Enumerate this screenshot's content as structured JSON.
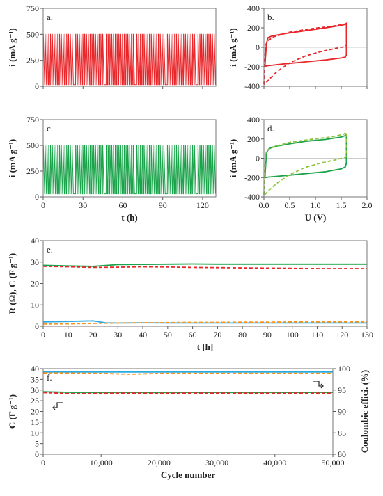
{
  "chart_data": [
    {
      "panel_label": "a.",
      "type": "line",
      "ylabel": "i (mA g⁻¹)",
      "xlabel": "",
      "xlim": [
        0,
        130
      ],
      "ylim": [
        0,
        750
      ],
      "yticks": [
        "0",
        "250",
        "500",
        "750"
      ],
      "xticks": [],
      "series": [
        {
          "color": "#e8262a",
          "style": "pulse",
          "low": 15,
          "high": 500,
          "pulse_count": 96,
          "gaps_at": [
            23,
            46,
            69,
            92,
            115
          ]
        }
      ]
    },
    {
      "panel_label": "b.",
      "type": "line",
      "ylabel": "i (mA g⁻¹)",
      "xlabel": "",
      "xlim": [
        0,
        2
      ],
      "ylim": [
        -400,
        400
      ],
      "yticks": [
        "-400",
        "-200",
        "0",
        "200",
        "400"
      ],
      "xticks": [],
      "series": [
        {
          "color": "#e8262a",
          "dash": false,
          "x": [
            0.02,
            0.05,
            0.08,
            0.15,
            0.4,
            0.8,
            1.2,
            1.5,
            1.58,
            1.6,
            1.6,
            1.58,
            1.5,
            1.2,
            0.8,
            0.4,
            0.15,
            0.06,
            0.03,
            0.02
          ],
          "y": [
            -190,
            40,
            100,
            115,
            140,
            170,
            200,
            225,
            235,
            245,
            -80,
            -100,
            -110,
            -130,
            -150,
            -170,
            -185,
            -190,
            -195,
            -190
          ]
        },
        {
          "color": "#e8262a",
          "dash": true,
          "x": [
            0.0,
            0.03,
            0.08,
            0.2,
            0.5,
            0.9,
            1.3,
            1.55,
            1.6,
            1.6,
            1.55,
            1.4,
            1.1,
            0.8,
            0.5,
            0.25,
            0.1,
            0.03,
            0.0
          ],
          "y": [
            -380,
            20,
            70,
            110,
            155,
            190,
            215,
            235,
            245,
            20,
            5,
            -10,
            -45,
            -90,
            -160,
            -250,
            -330,
            -370,
            -380
          ]
        }
      ]
    },
    {
      "panel_label": "c.",
      "type": "line",
      "ylabel": "i (mA g⁻¹)",
      "xlabel": "t (h)",
      "xlim": [
        0,
        130
      ],
      "ylim": [
        0,
        750
      ],
      "yticks": [
        "0",
        "250",
        "500",
        "750"
      ],
      "xticks": [
        "0",
        "30",
        "60",
        "90",
        "120"
      ],
      "series": [
        {
          "color": "#1aa34a",
          "style": "pulse",
          "low": 30,
          "high": 500,
          "pulse_count": 96,
          "gaps_at": [
            23,
            46,
            69,
            92,
            115
          ]
        }
      ]
    },
    {
      "panel_label": "d.",
      "type": "line",
      "ylabel": "i (mA g⁻¹)",
      "xlabel": "U (V)",
      "xlim": [
        0,
        2
      ],
      "ylim": [
        -400,
        400
      ],
      "yticks": [
        "-400",
        "-200",
        "0",
        "200",
        "400"
      ],
      "xticks": [
        "0.0",
        "0.5",
        "1.0",
        "1.5",
        "2.0"
      ],
      "series": [
        {
          "color": "#1aa34a",
          "dash": false,
          "x": [
            0.02,
            0.05,
            0.1,
            0.2,
            0.5,
            0.8,
            1.2,
            1.5,
            1.58,
            1.6,
            1.6,
            1.58,
            1.5,
            1.2,
            0.8,
            0.5,
            0.2,
            0.08,
            0.03,
            0.02
          ],
          "y": [
            -200,
            60,
            100,
            120,
            150,
            175,
            195,
            220,
            235,
            255,
            -50,
            -90,
            -110,
            -140,
            -160,
            -175,
            -190,
            -195,
            -200,
            -200
          ]
        },
        {
          "color": "#8cc63f",
          "dash": true,
          "x": [
            0.0,
            0.03,
            0.08,
            0.2,
            0.5,
            0.9,
            1.3,
            1.55,
            1.6,
            1.6,
            1.55,
            1.4,
            1.1,
            0.8,
            0.5,
            0.25,
            0.1,
            0.03,
            0.0
          ],
          "y": [
            -380,
            40,
            90,
            120,
            165,
            195,
            220,
            250,
            270,
            20,
            5,
            -15,
            -50,
            -95,
            -170,
            -260,
            -330,
            -370,
            -380
          ]
        }
      ]
    },
    {
      "panel_label": "e.",
      "type": "line",
      "ylabel": "R (Ω), C (F g⁻¹)",
      "xlabel": "t [h]",
      "xlim": [
        0,
        130
      ],
      "ylim": [
        0,
        40
      ],
      "yticks": [
        "0",
        "10",
        "20",
        "30",
        "40"
      ],
      "xticks": [
        "0",
        "10",
        "20",
        "30",
        "40",
        "50",
        "60",
        "70",
        "80",
        "90",
        "100",
        "110",
        "120",
        "130"
      ],
      "series": [
        {
          "color": "#1aa34a",
          "dash": false,
          "x": [
            0,
            10,
            20,
            30,
            40,
            50,
            60,
            70,
            80,
            90,
            100,
            110,
            120,
            130
          ],
          "y": [
            28.5,
            28.2,
            28.0,
            28.8,
            28.9,
            29.0,
            29.1,
            29.0,
            29.0,
            29.0,
            29.0,
            29.0,
            29.0,
            29.0
          ]
        },
        {
          "color": "#e8262a",
          "dash": true,
          "x": [
            0,
            10,
            20,
            30,
            40,
            50,
            60,
            70,
            80,
            90,
            100,
            110,
            120,
            130
          ],
          "y": [
            28.0,
            27.8,
            27.5,
            27.6,
            27.8,
            27.7,
            27.5,
            27.4,
            27.3,
            27.2,
            27.1,
            27.0,
            27.0,
            27.0
          ]
        },
        {
          "color": "#29abe2",
          "dash": false,
          "x": [
            0,
            10,
            20,
            25,
            30,
            40,
            50,
            60,
            70,
            80,
            90,
            100,
            110,
            120,
            130
          ],
          "y": [
            2.0,
            2.2,
            2.5,
            1.6,
            1.5,
            1.6,
            1.5,
            1.5,
            1.5,
            1.5,
            1.5,
            1.5,
            1.5,
            1.5,
            1.5
          ]
        },
        {
          "color": "#f7931e",
          "dash": true,
          "x": [
            0,
            10,
            20,
            30,
            40,
            50,
            60,
            70,
            80,
            90,
            100,
            110,
            120,
            130
          ],
          "y": [
            1.0,
            1.1,
            1.3,
            1.5,
            1.6,
            1.7,
            1.8,
            1.8,
            1.9,
            1.9,
            2.0,
            2.0,
            2.0,
            2.0
          ]
        }
      ]
    },
    {
      "panel_label": "f.",
      "type": "line",
      "ylabel": "C (F g⁻¹)",
      "y2label": "Coulombic effici. (%)",
      "xlabel": "Cycle number",
      "xlim": [
        0,
        50000
      ],
      "ylim": [
        0,
        40
      ],
      "y2lim": [
        80,
        100
      ],
      "yticks": [
        "0",
        "5",
        "10",
        "15",
        "20",
        "25",
        "30",
        "35",
        "40"
      ],
      "y2ticks": [
        "80",
        "85",
        "90",
        "95",
        "100"
      ],
      "xticks": [
        "0",
        "10,000",
        "20,000",
        "30,000",
        "40,000",
        "50,000"
      ],
      "series": [
        {
          "axis": "left",
          "color": "#1aa34a",
          "dash": false,
          "x": [
            0,
            5000,
            10000,
            15000,
            20000,
            25000,
            30000,
            35000,
            40000,
            45000,
            50000
          ],
          "y": [
            29.2,
            28.9,
            28.8,
            28.9,
            28.8,
            28.9,
            28.9,
            28.8,
            28.9,
            28.9,
            28.9
          ]
        },
        {
          "axis": "left",
          "color": "#e8262a",
          "dash": true,
          "x": [
            0,
            5000,
            10000,
            15000,
            20000,
            25000,
            30000,
            35000,
            40000,
            45000,
            50000
          ],
          "y": [
            28.8,
            28.3,
            28.5,
            28.6,
            28.5,
            28.6,
            28.6,
            28.6,
            28.5,
            28.6,
            28.5
          ]
        },
        {
          "axis": "right",
          "color": "#29abe2",
          "dash": false,
          "x": [
            0,
            10000,
            20000,
            30000,
            40000,
            50000
          ],
          "y": [
            99.2,
            99.2,
            99.2,
            99.2,
            99.2,
            99.2
          ]
        },
        {
          "axis": "right",
          "color": "#f7931e",
          "dash": true,
          "x": [
            0,
            10000,
            15000,
            20000,
            30000,
            40000,
            50000
          ],
          "y": [
            99.0,
            98.9,
            98.7,
            98.9,
            98.9,
            98.9,
            98.9
          ]
        }
      ]
    }
  ]
}
